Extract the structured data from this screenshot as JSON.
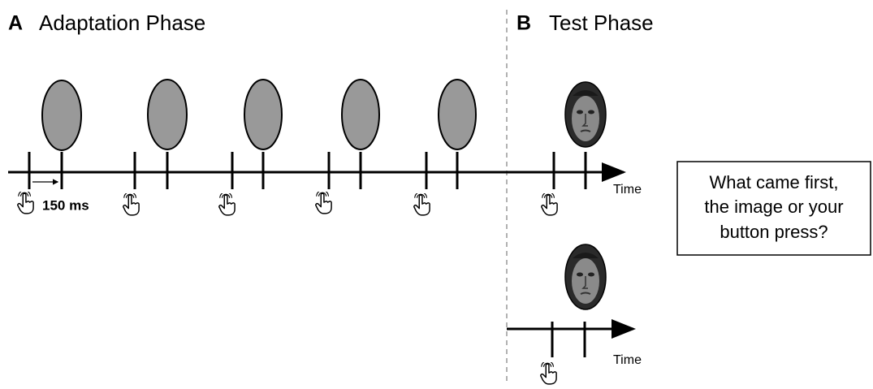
{
  "panels": [
    {
      "letter": "A",
      "title": "Adaptation Phase"
    },
    {
      "letter": "B",
      "title": "Test Phase"
    }
  ],
  "interval_label": "150 ms",
  "timelines": [
    {
      "label": "Time"
    },
    {
      "label": "Time"
    }
  ],
  "question": {
    "lines": [
      "What came first,",
      "the image or your",
      "button press?"
    ]
  }
}
